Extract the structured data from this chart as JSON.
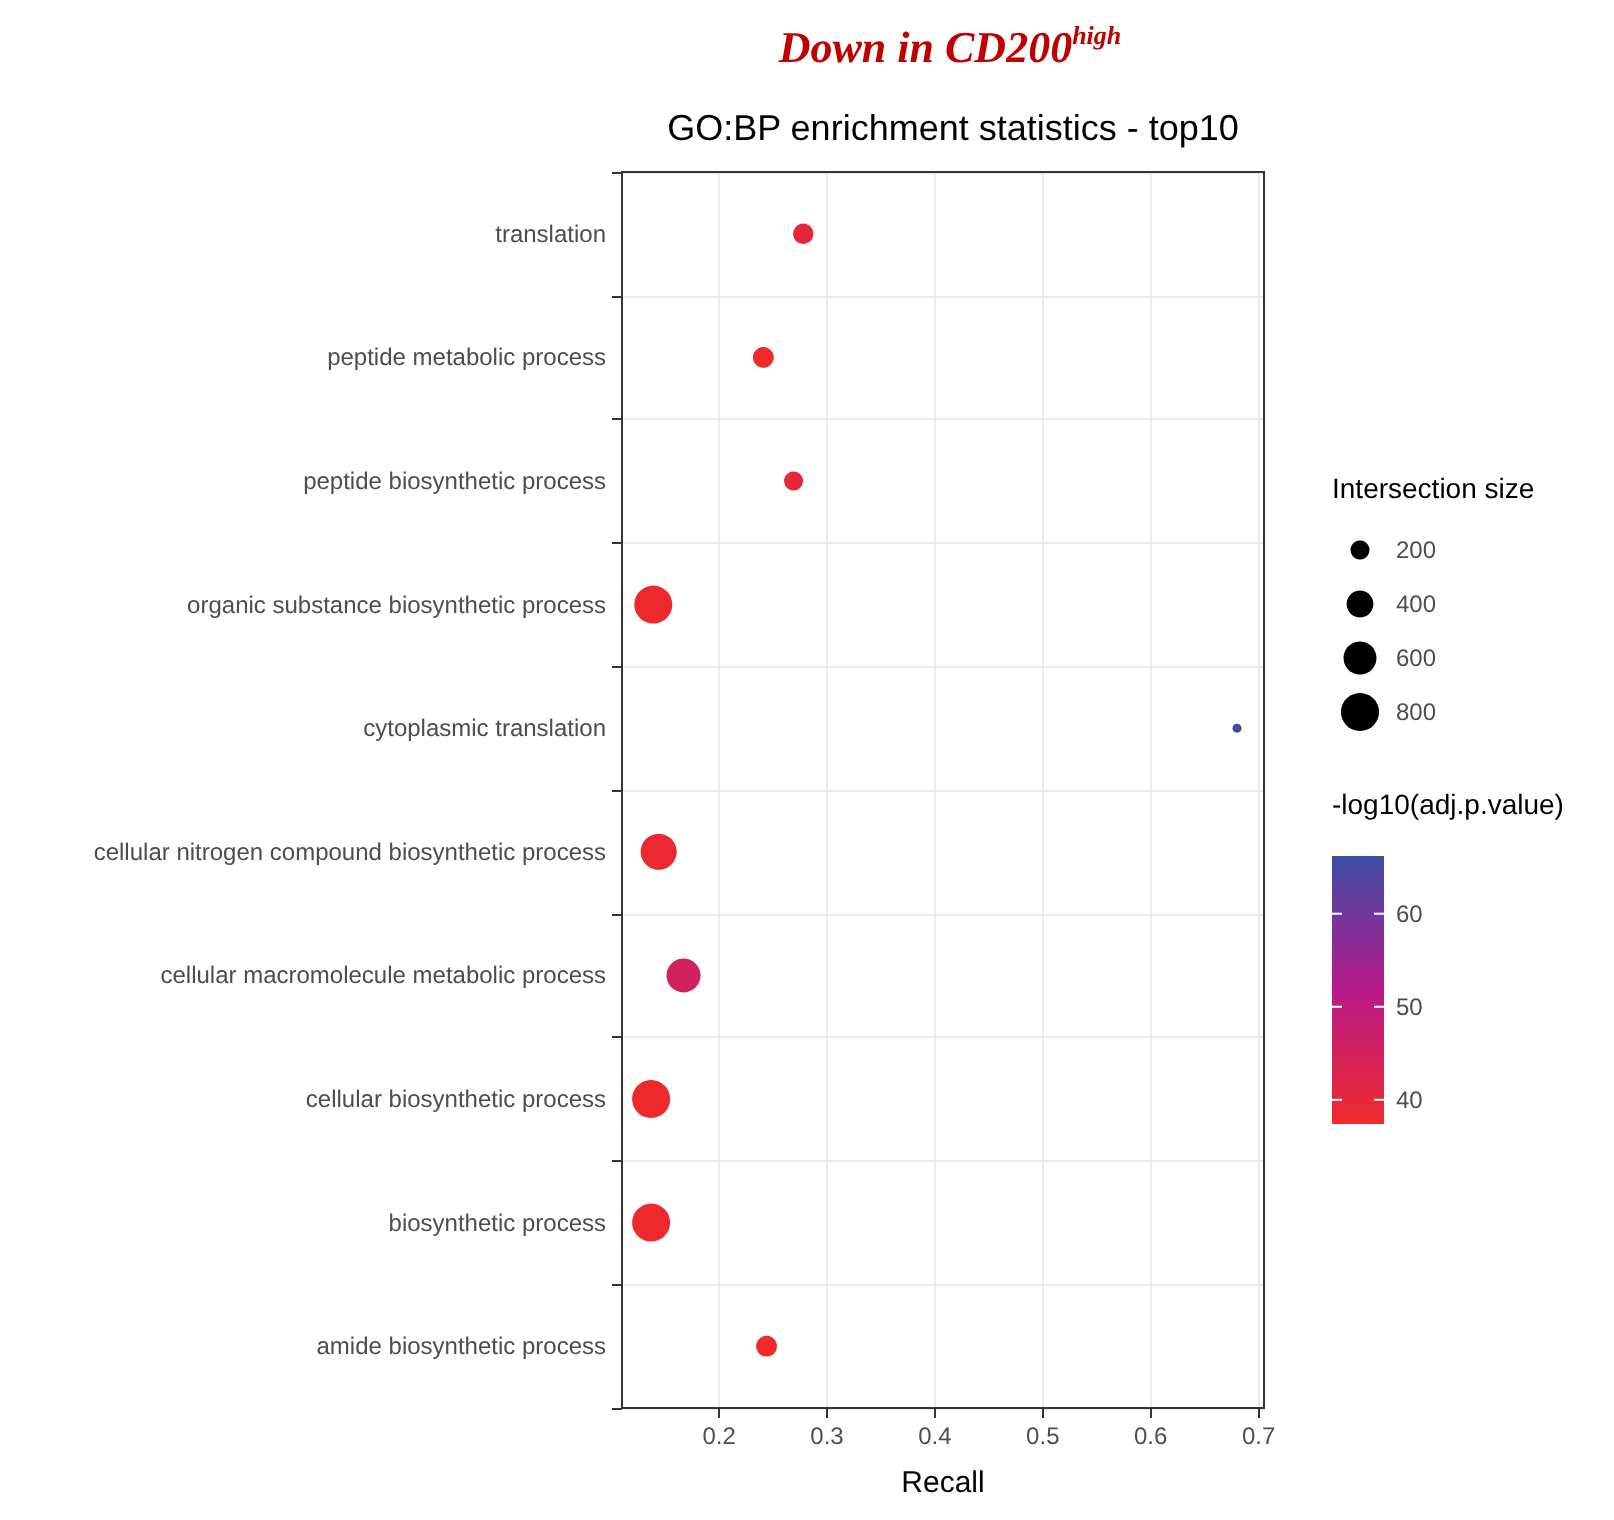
{
  "chart_data": {
    "type": "bubble",
    "title": "Down in CD200$^{high}$",
    "subtitle": "GO:BP enrichment statistics - top10",
    "xlabel": "Recall",
    "legend_title": "Intersection size",
    "clabel": "-log10(adj.p.value)",
    "orientation": "horizontal",
    "categories": [
      "translation",
      "peptide metabolic process",
      "peptide biosynthetic process",
      "organic substance biosynthetic process",
      "cytoplasmic translation",
      "cellular nitrogen compound biosynthetic process",
      "cellular macromolecule metabolic process",
      "cellular biosynthetic process",
      "biosynthetic process",
      "amide biosynthetic process"
    ],
    "values": [
      0.278,
      0.241,
      0.269,
      0.139,
      0.68,
      0.144,
      0.167,
      0.137,
      0.137,
      0.244
    ],
    "sizes": [
      230,
      240,
      200,
      800,
      45,
      720,
      640,
      800,
      800,
      240
    ],
    "size_legend": [
      200,
      400,
      600,
      800
    ],
    "cvalues": [
      40,
      37.5,
      40,
      38,
      66,
      38.5,
      45,
      38,
      38,
      37.5
    ],
    "clim": [
      37.4,
      66.2
    ],
    "cticks": [
      40,
      50,
      60
    ],
    "xlim": [
      0.11,
      0.705
    ],
    "xticks": [
      0.2,
      0.3,
      0.4,
      0.5,
      0.6,
      0.7
    ],
    "grid": true,
    "marker": "circle"
  }
}
